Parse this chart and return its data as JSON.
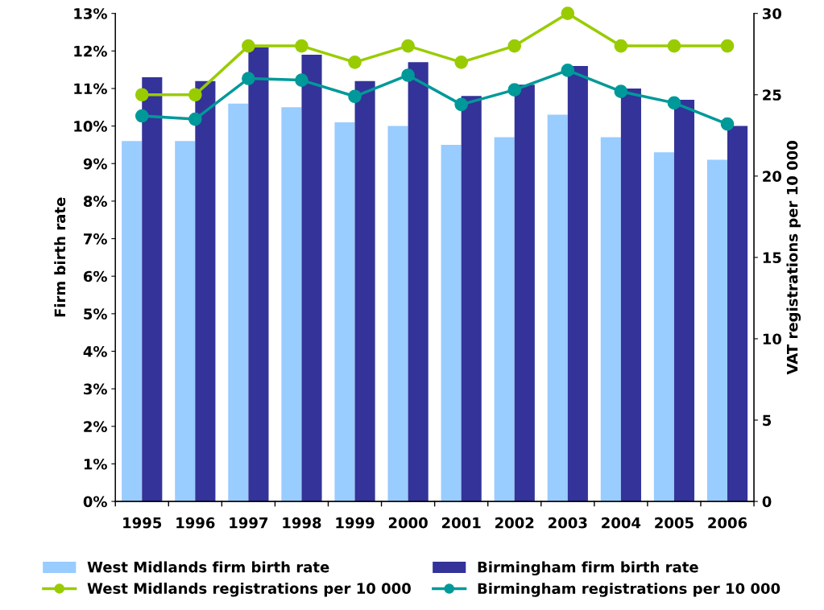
{
  "chart_data": {
    "type": "bar",
    "ylabel": "Firm birth rate",
    "y2label": "VAT registrations per 10 000",
    "categories": [
      "1995",
      "1996",
      "1997",
      "1998",
      "1999",
      "2000",
      "2001",
      "2002",
      "2003",
      "2004",
      "2005",
      "2006"
    ],
    "series": [
      {
        "name": "West Midlands firm birth rate",
        "color": "#99ccff",
        "values": [
          9.6,
          9.6,
          10.6,
          10.5,
          10.1,
          10.0,
          9.5,
          9.7,
          10.3,
          9.7,
          9.3,
          9.1
        ]
      },
      {
        "name": "Birmingham firm birth rate",
        "color": "#333399",
        "values": [
          11.3,
          11.2,
          12.1,
          11.9,
          11.2,
          11.7,
          10.8,
          11.1,
          11.6,
          11.0,
          10.7,
          10.0
        ]
      },
      {
        "name": "West Midlands registrations per 10 000",
        "type": "line",
        "axis": "y2",
        "color": "#99cc00",
        "values": [
          25,
          25,
          28,
          28,
          27,
          28,
          27,
          28,
          30,
          28,
          28,
          28
        ]
      },
      {
        "name": "Birmingham registrations per 10 000",
        "type": "line",
        "axis": "y2",
        "color": "#009999",
        "values": [
          23.7,
          23.5,
          26.0,
          25.9,
          24.9,
          26.2,
          24.4,
          25.3,
          26.5,
          25.2,
          24.5,
          23.2
        ]
      }
    ],
    "ylim": [
      0,
      13
    ],
    "yticks": [
      {
        "value": 0,
        "label": "0%"
      },
      {
        "value": 1,
        "label": "1%"
      },
      {
        "value": 2,
        "label": "2%"
      },
      {
        "value": 3,
        "label": "3%"
      },
      {
        "value": 4,
        "label": "4%"
      },
      {
        "value": 5,
        "label": "5%"
      },
      {
        "value": 6,
        "label": "6%"
      },
      {
        "value": 7,
        "label": "7%"
      },
      {
        "value": 8,
        "label": "8%"
      },
      {
        "value": 9,
        "label": "9%"
      },
      {
        "value": 10,
        "label": "10%"
      },
      {
        "value": 11,
        "label": "11%"
      },
      {
        "value": 12,
        "label": "12%"
      },
      {
        "value": 13,
        "label": "13%"
      }
    ],
    "y2lim": [
      0,
      30
    ],
    "y2ticks": [
      0,
      5,
      10,
      15,
      20,
      25,
      30
    ],
    "grid": false,
    "legend": "bottom",
    "marker": "circle",
    "line_style": "solid"
  }
}
